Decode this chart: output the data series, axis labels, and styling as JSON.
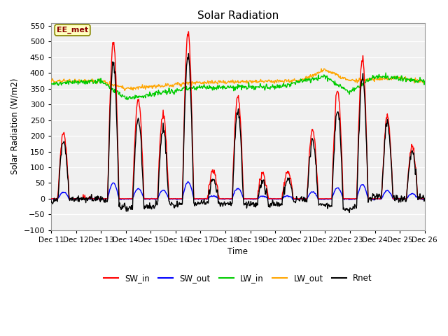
{
  "title": "Solar Radiation",
  "ylabel": "Solar Radiation (W/m2)",
  "xlabel": "Time",
  "ylim": [
    -100,
    560
  ],
  "yticks": [
    -100,
    -50,
    0,
    50,
    100,
    150,
    200,
    250,
    300,
    350,
    400,
    450,
    500,
    550
  ],
  "xlim": [
    0,
    15
  ],
  "xtick_labels": [
    "Dec 11",
    "Dec 12",
    "Dec 13",
    "Dec 14",
    "Dec 15",
    "Dec 16",
    "Dec 17",
    "Dec 18",
    "Dec 19",
    "Dec 20",
    "Dec 21",
    "Dec 22",
    "Dec 23",
    "Dec 24",
    "Dec 25",
    "Dec 26"
  ],
  "annotation": "EE_met",
  "plot_bg": "#f0f0f0",
  "fig_bg": "#ffffff",
  "legend": [
    {
      "label": "SW_in",
      "color": "#ff0000"
    },
    {
      "label": "SW_out",
      "color": "#0000ff"
    },
    {
      "label": "LW_in",
      "color": "#00cc00"
    },
    {
      "label": "LW_out",
      "color": "#ffa500"
    },
    {
      "label": "Rnet",
      "color": "#000000"
    }
  ]
}
